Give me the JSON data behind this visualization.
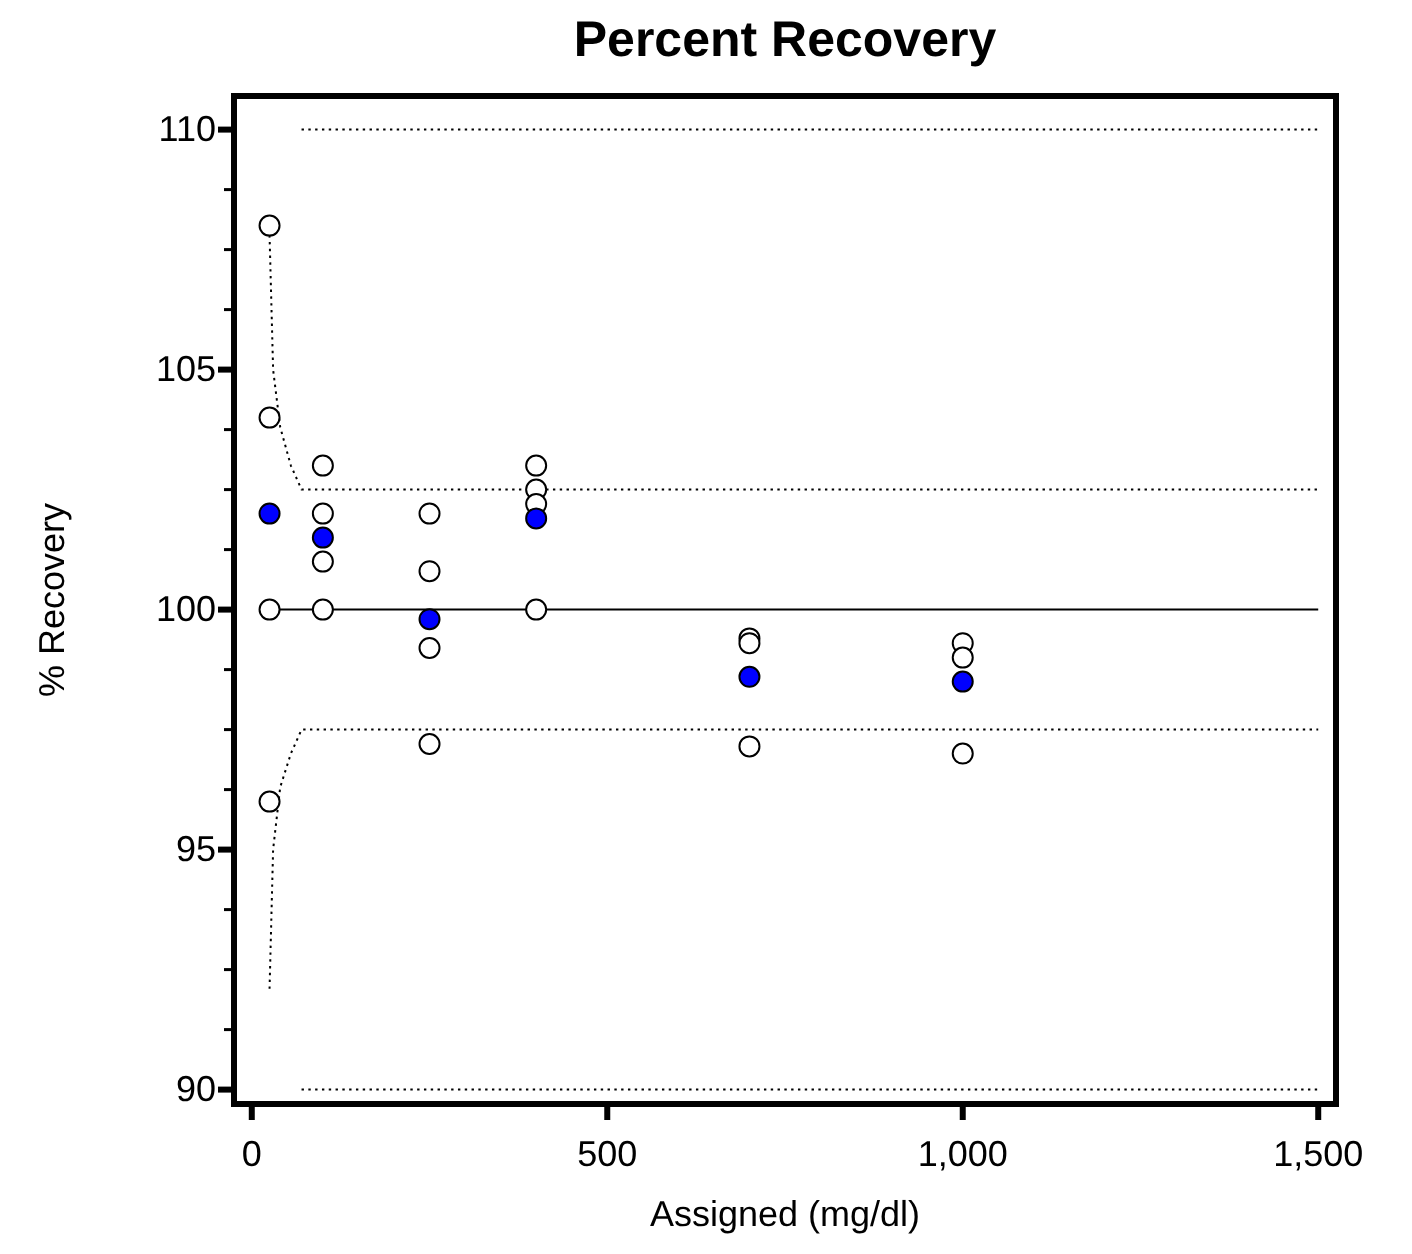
{
  "chart_data": {
    "type": "scatter",
    "title": "Percent Recovery",
    "xlabel": "Assigned (mg/dl)",
    "ylabel": "% Recovery",
    "xlim": [
      -25,
      1525
    ],
    "ylim": [
      89.7,
      110.7
    ],
    "xticks": [
      0,
      500,
      {
        "value": 1000,
        "label": "1,000"
      },
      {
        "value": 1500,
        "label": "1,500"
      }
    ],
    "yticks": [
      90,
      {
        "value": 91.25,
        "label": null
      },
      {
        "value": 92.5,
        "label": null
      },
      {
        "value": 93.75,
        "label": null
      },
      95,
      {
        "value": 96.25,
        "label": null
      },
      {
        "value": 97.5,
        "label": null
      },
      {
        "value": 98.75,
        "label": null
      },
      100,
      {
        "value": 101.25,
        "label": null
      },
      {
        "value": 102.5,
        "label": null
      },
      {
        "value": 103.75,
        "label": null
      },
      105,
      {
        "value": 106.25,
        "label": null
      },
      {
        "value": 107.5,
        "label": null
      },
      {
        "value": 108.75,
        "label": null
      },
      110
    ],
    "grid": false,
    "marker": "circle",
    "series": [
      {
        "type": "line",
        "line_style": "solid",
        "color": "#000000",
        "marker": "none",
        "x": [
          20,
          1500
        ],
        "values": [
          100,
          100
        ]
      },
      {
        "type": "line",
        "line_style": "dotted",
        "color": "#000000",
        "marker": "none",
        "x": [
          25,
          30,
          40,
          55,
          70,
          1500
        ],
        "values": [
          107.8,
          105,
          103.8,
          103,
          102.5,
          102.5
        ]
      },
      {
        "type": "line",
        "line_style": "dotted",
        "color": "#000000",
        "marker": "none",
        "x": [
          25,
          30,
          40,
          55,
          70,
          1500
        ],
        "values": [
          92.1,
          95,
          96.3,
          97,
          97.5,
          97.5
        ]
      },
      {
        "type": "line",
        "line_style": "dotted",
        "color": "#000000",
        "marker": "none",
        "x": [
          70,
          1500
        ],
        "values": [
          110,
          110
        ]
      },
      {
        "type": "line",
        "line_style": "dotted",
        "color": "#000000",
        "marker": "none",
        "x": [
          70,
          1500
        ],
        "values": [
          90,
          90
        ]
      },
      {
        "type": "scatter",
        "color": "#ffffff",
        "x": [
          25,
          25,
          25,
          25,
          100,
          100,
          100,
          100,
          250,
          250,
          250,
          250,
          400,
          400,
          400,
          400,
          700,
          700,
          700,
          1000,
          1000,
          1000
        ],
        "values": [
          108,
          104,
          100,
          96,
          103,
          102,
          101,
          100,
          102,
          100.8,
          99.2,
          97.2,
          103,
          102.5,
          102.2,
          100,
          99.4,
          99.3,
          97.15,
          99.3,
          99,
          97
        ]
      },
      {
        "type": "scatter",
        "color": "#0000ff",
        "x": [
          25,
          100,
          250,
          400,
          700,
          1000
        ],
        "values": [
          102,
          101.5,
          99.8,
          101.9,
          98.6,
          98.5
        ]
      }
    ]
  }
}
